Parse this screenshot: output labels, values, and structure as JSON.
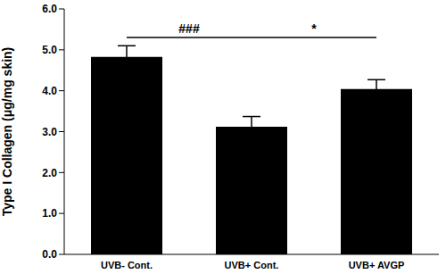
{
  "chart_data": {
    "type": "bar",
    "y_label": "Type I Collagen (μg/mg skin)",
    "categories": [
      "UVB- Cont.",
      "UVB+ Cont.",
      "UVB+ AVGP"
    ],
    "values": [
      4.83,
      3.12,
      4.04
    ],
    "errors": [
      0.27,
      0.25,
      0.23
    ],
    "color": "#000000",
    "ylim": [
      0,
      6
    ],
    "yticks": [
      {
        "value": 0,
        "label": "0.0"
      },
      {
        "value": 1,
        "label": "1.0"
      },
      {
        "value": 2,
        "label": "2.0"
      },
      {
        "value": 3,
        "label": "3.0"
      },
      {
        "value": 4,
        "label": "4.0"
      },
      {
        "value": 5,
        "label": "5.0"
      },
      {
        "value": 6,
        "label": "6.0"
      }
    ],
    "grid": false,
    "annotations": [
      {
        "text": "###",
        "from": "UVB- Cont.",
        "to": "UVB+ Cont."
      },
      {
        "text": "*",
        "from": "UVB+ Cont.",
        "to": "UVB+ AVGP"
      }
    ]
  }
}
